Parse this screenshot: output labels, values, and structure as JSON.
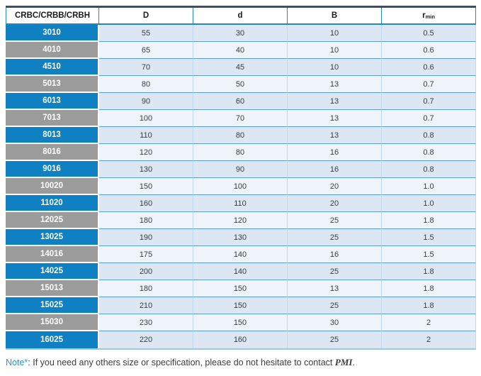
{
  "table": {
    "columns": [
      {
        "key": "model",
        "label": "CRBC/CRBB/CRBH",
        "sub": ""
      },
      {
        "key": "D",
        "label": "D",
        "sub": ""
      },
      {
        "key": "d",
        "label": "d",
        "sub": ""
      },
      {
        "key": "B",
        "label": "B",
        "sub": ""
      },
      {
        "key": "r",
        "label": "r",
        "sub": "min"
      }
    ],
    "rows": [
      {
        "model": "3010",
        "D": "55",
        "d": "30",
        "B": "10",
        "r": "0.5",
        "tone": "blue"
      },
      {
        "model": "4010",
        "D": "65",
        "d": "40",
        "B": "10",
        "r": "0.6",
        "tone": "gray"
      },
      {
        "model": "4510",
        "D": "70",
        "d": "45",
        "B": "10",
        "r": "0.6",
        "tone": "blue"
      },
      {
        "model": "5013",
        "D": "80",
        "d": "50",
        "B": "13",
        "r": "0.7",
        "tone": "gray"
      },
      {
        "model": "6013",
        "D": "90",
        "d": "60",
        "B": "13",
        "r": "0.7",
        "tone": "blue"
      },
      {
        "model": "7013",
        "D": "100",
        "d": "70",
        "B": "13",
        "r": "0.7",
        "tone": "gray"
      },
      {
        "model": "8013",
        "D": "110",
        "d": "80",
        "B": "13",
        "r": "0.8",
        "tone": "blue"
      },
      {
        "model": "8016",
        "D": "120",
        "d": "80",
        "B": "16",
        "r": "0.8",
        "tone": "gray"
      },
      {
        "model": "9016",
        "D": "130",
        "d": "90",
        "B": "16",
        "r": "0.8",
        "tone": "blue"
      },
      {
        "model": "10020",
        "D": "150",
        "d": "100",
        "B": "20",
        "r": "1.0",
        "tone": "gray"
      },
      {
        "model": "11020",
        "D": "160",
        "d": "110",
        "B": "20",
        "r": "1.0",
        "tone": "blue"
      },
      {
        "model": "12025",
        "D": "180",
        "d": "120",
        "B": "25",
        "r": "1.8",
        "tone": "gray"
      },
      {
        "model": "13025",
        "D": "190",
        "d": "130",
        "B": "25",
        "r": "1.5",
        "tone": "blue"
      },
      {
        "model": "14016",
        "D": "175",
        "d": "140",
        "B": "16",
        "r": "1.5",
        "tone": "gray"
      },
      {
        "model": "14025",
        "D": "200",
        "d": "140",
        "B": "25",
        "r": "1.8",
        "tone": "blue"
      },
      {
        "model": "15013",
        "D": "180",
        "d": "150",
        "B": "13",
        "r": "1.8",
        "tone": "gray"
      },
      {
        "model": "15025",
        "D": "210",
        "d": "150",
        "B": "25",
        "r": "1.8",
        "tone": "blue"
      },
      {
        "model": "15030",
        "D": "230",
        "d": "150",
        "B": "30",
        "r": "2",
        "tone": "gray"
      },
      {
        "model": "16025",
        "D": "220",
        "d": "160",
        "B": "25",
        "r": "2",
        "tone": "blue"
      }
    ]
  },
  "note": {
    "label": "Note*",
    "colon": ": ",
    "text": "If you need any others size or specification, please do not hesitate to contact ",
    "brand": "PMI",
    "period": "."
  },
  "colors": {
    "model_blue": "#0f80c2",
    "model_gray": "#9b9b9b",
    "row_lavender": "#dde7f4",
    "row_light": "#eff4fb",
    "row_separator": "#5c9fd3",
    "header_border": "#2287c5",
    "table_top_border": "#434e58",
    "table_bottom_border": "#a3c6e3",
    "note_accent": "#2d95d3"
  }
}
